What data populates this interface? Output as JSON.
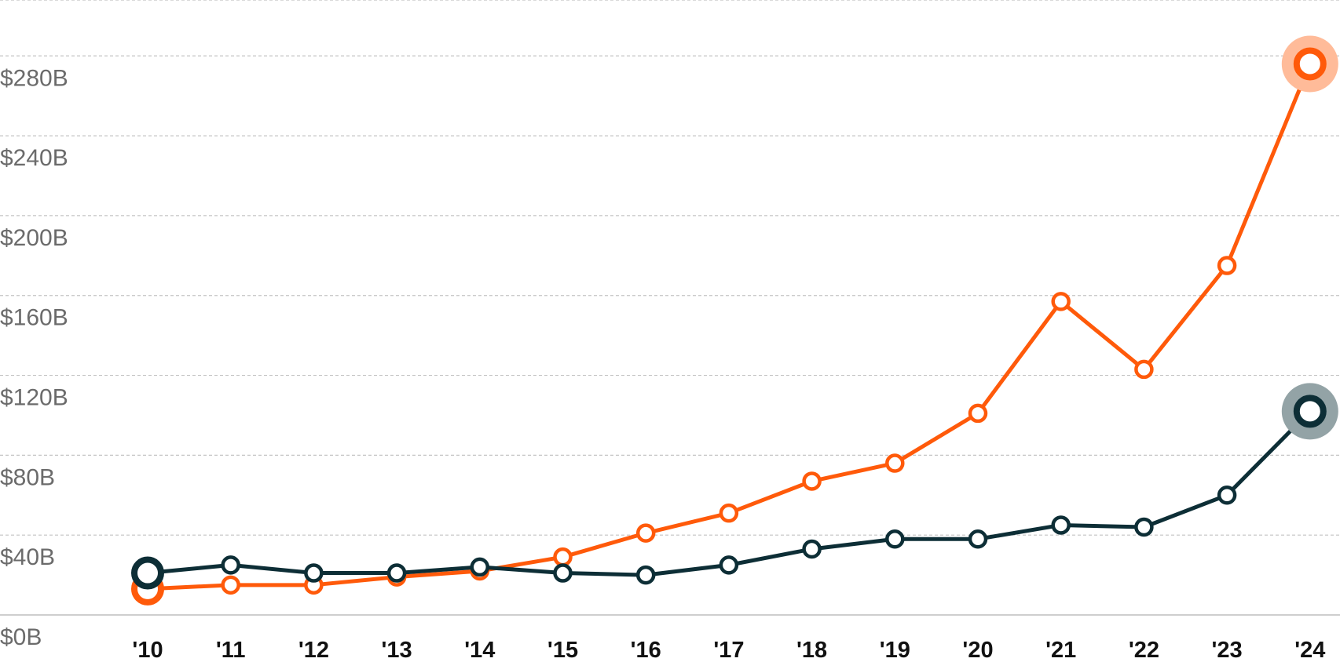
{
  "chart_data": {
    "type": "line",
    "title": "",
    "xlabel": "",
    "ylabel": "",
    "categories": [
      "'10",
      "'11",
      "'12",
      "'13",
      "'14",
      "'15",
      "'16",
      "'17",
      "'18",
      "'19",
      "'20",
      "'21",
      "'22",
      "'23",
      "'24"
    ],
    "y_tick_labels": [
      "$0B",
      "$40B",
      "$80B",
      "$120B",
      "$160B",
      "$200B",
      "$240B",
      "$280B"
    ],
    "y_tick_values": [
      0,
      40,
      80,
      120,
      160,
      200,
      240,
      280
    ],
    "ylim": [
      0,
      280
    ],
    "grid": true,
    "legend": "none",
    "series": [
      {
        "color": "#ff5a0a",
        "halo_color": "#ffbb99",
        "values": [
          13,
          15,
          15,
          19,
          22,
          29,
          41,
          51,
          67,
          76,
          101,
          157,
          123,
          175,
          276
        ]
      },
      {
        "color": "#0d2e36",
        "halo_color": "#93a3a6",
        "values": [
          21,
          25,
          21,
          21,
          24,
          21,
          20,
          25,
          33,
          38,
          38,
          45,
          44,
          60,
          102
        ]
      }
    ]
  }
}
